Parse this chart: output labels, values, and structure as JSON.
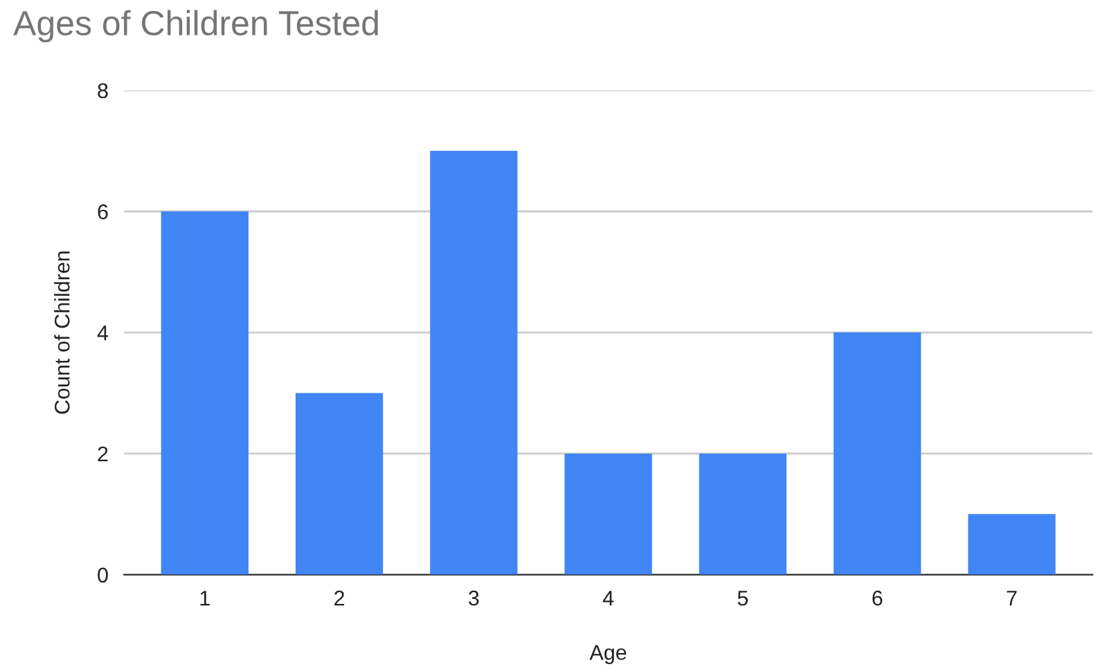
{
  "chart_data": {
    "type": "bar",
    "title": "Ages of Children Tested",
    "xlabel": "Age",
    "ylabel": "Count of Children",
    "categories": [
      "1",
      "2",
      "3",
      "4",
      "5",
      "6",
      "7"
    ],
    "values": [
      6,
      3,
      7,
      2,
      2,
      4,
      1
    ],
    "color": "#4285f4",
    "ylim": [
      0,
      8
    ],
    "yticks": [
      0,
      2,
      4,
      6,
      8
    ],
    "grid": "y"
  }
}
